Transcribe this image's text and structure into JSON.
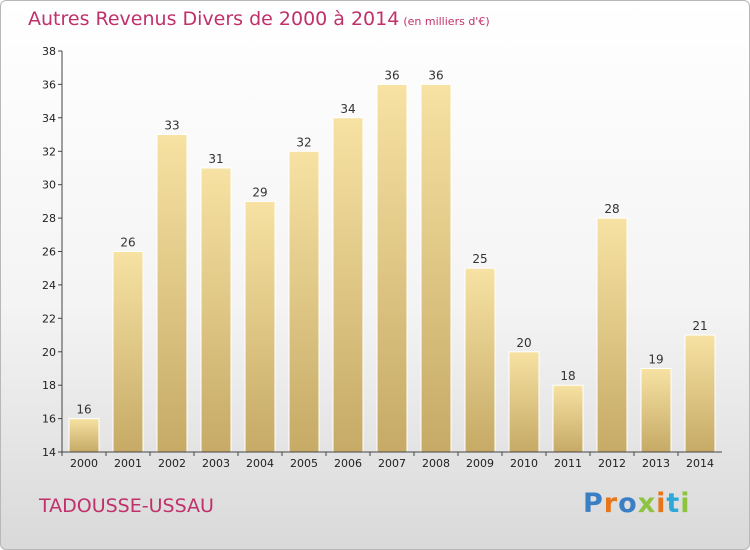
{
  "header": {
    "title": "Autres Revenus Divers de 2000 à 2014",
    "unit": "(en milliers d'€)"
  },
  "footer": {
    "town": "TADOUSSE-USSAU",
    "logo_text": "Proxiti"
  },
  "colors": {
    "title": "#c0306a",
    "bar_top": "#f5dc9a",
    "bar_bottom": "#c8ad68",
    "axis": "#444444"
  },
  "chart_data": {
    "type": "bar",
    "title": "Autres Revenus Divers de 2000 à 2014",
    "subtitle": "(en milliers d'€)",
    "xlabel": "",
    "ylabel": "",
    "categories": [
      "2000",
      "2001",
      "2002",
      "2003",
      "2004",
      "2005",
      "2006",
      "2007",
      "2008",
      "2009",
      "2010",
      "2011",
      "2012",
      "2013",
      "2014"
    ],
    "values": [
      16,
      26,
      33,
      31,
      29,
      32,
      34,
      36,
      36,
      25,
      20,
      18,
      28,
      19,
      21
    ],
    "ylim": [
      14,
      38
    ],
    "yticks": [
      14,
      16,
      18,
      20,
      22,
      24,
      26,
      28,
      30,
      32,
      34,
      36,
      38
    ],
    "grid": false,
    "legend": "none"
  }
}
